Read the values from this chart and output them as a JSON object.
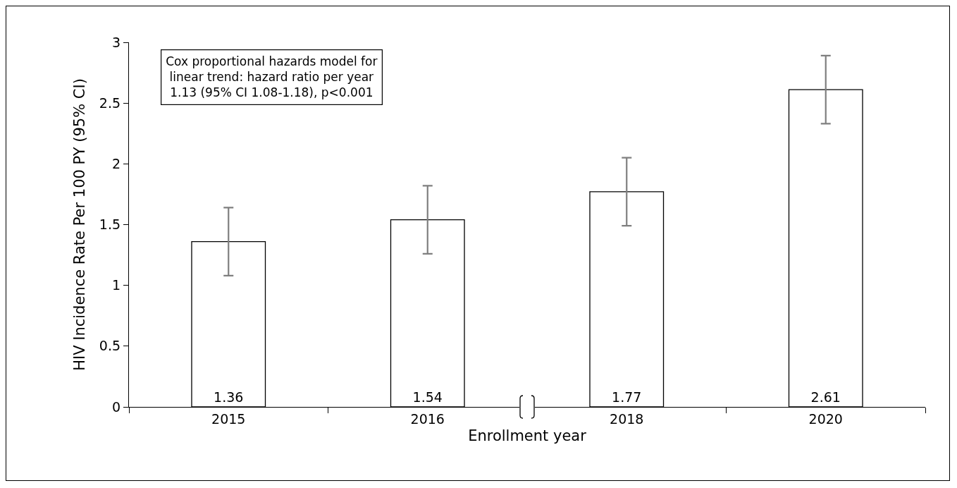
{
  "chart_data": {
    "type": "bar",
    "xlabel": "Enrollment year",
    "ylabel": "HIV Incidence Rate Per 100 PY (95% CI)",
    "categories": [
      "2015",
      "2016",
      "2018",
      "2020"
    ],
    "values": [
      1.36,
      1.54,
      1.77,
      2.61
    ],
    "color": "#ffffff",
    "errors": [
      [
        1.08,
        1.64
      ],
      [
        1.26,
        1.82
      ],
      [
        1.49,
        2.05
      ],
      [
        2.33,
        2.89
      ]
    ],
    "data_labels": true,
    "ylim": [
      0,
      3
    ],
    "yticks": [
      0,
      0.5,
      1,
      1.5,
      2,
      2.5,
      3
    ],
    "grid": false,
    "legend": false,
    "annotations": [
      "Cox proportional hazards model for\nlinear trend: hazard ratio per year\n1.13 (95% CI 1.08-1.18), p<0.001"
    ]
  }
}
